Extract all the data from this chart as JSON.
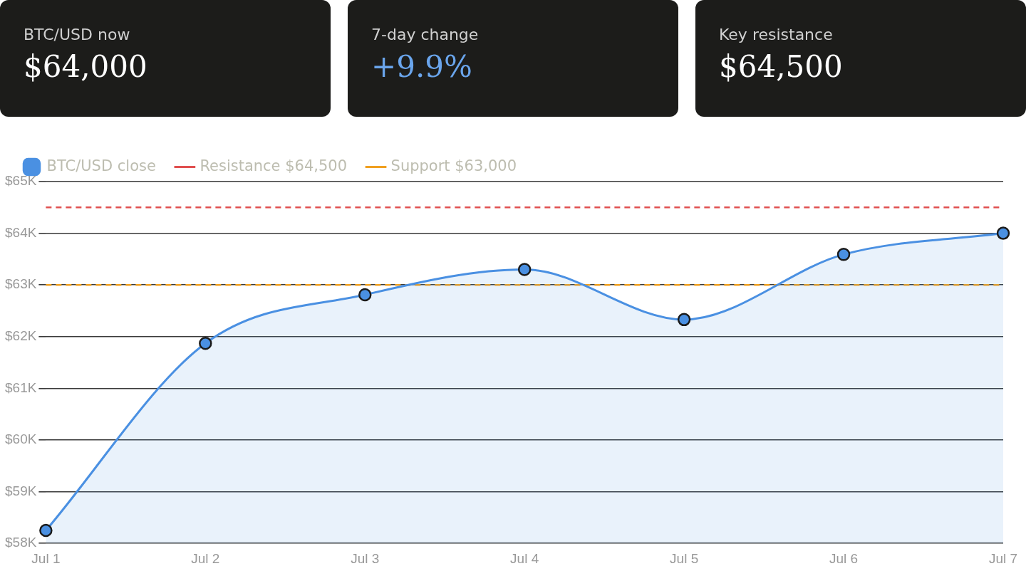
{
  "chart_data": [
    {
      "type": "other",
      "title": "BTC/USD now",
      "annotations": [
        "$64,000"
      ],
      "color": "#ffffff"
    },
    {
      "type": "other",
      "title": "7-day change",
      "annotations": [
        "+9.9%"
      ],
      "color": "#6aa5ec"
    },
    {
      "type": "other",
      "title": "Key resistance",
      "annotations": [
        "$64,500"
      ],
      "color": "#ffffff"
    },
    {
      "type": "area",
      "categories": [
        "Jul 1",
        "Jul 2",
        "Jul 3",
        "Jul 4",
        "Jul 5",
        "Jul 6",
        "Jul 7"
      ],
      "series": [
        {
          "name": "BTC/USD close",
          "color": "#4a90e2",
          "values": [
            58250,
            61870,
            62810,
            63300,
            62330,
            63590,
            64000
          ]
        }
      ],
      "ylim": [
        58000,
        65000
      ],
      "yticks": [
        {
          "value": 58000,
          "label": "$58K"
        },
        {
          "value": 59000,
          "label": "$59K"
        },
        {
          "value": 60000,
          "label": "$60K"
        },
        {
          "value": 61000,
          "label": "$61K"
        },
        {
          "value": 62000,
          "label": "$62K"
        },
        {
          "value": 63000,
          "label": "$63K"
        },
        {
          "value": 64000,
          "label": "$64K"
        },
        {
          "value": 65000,
          "label": "$65K"
        }
      ],
      "ref_lines": [
        {
          "axis": "y",
          "value": 64500,
          "label": "Resistance $64,500",
          "color": "#e05050",
          "line_style": "dashed"
        },
        {
          "axis": "y",
          "value": 63000,
          "label": "Support $63,000",
          "color": "#f0a020",
          "line_style": "dashed"
        }
      ],
      "grid": "y",
      "legend": "top left",
      "marker": "circle"
    }
  ]
}
